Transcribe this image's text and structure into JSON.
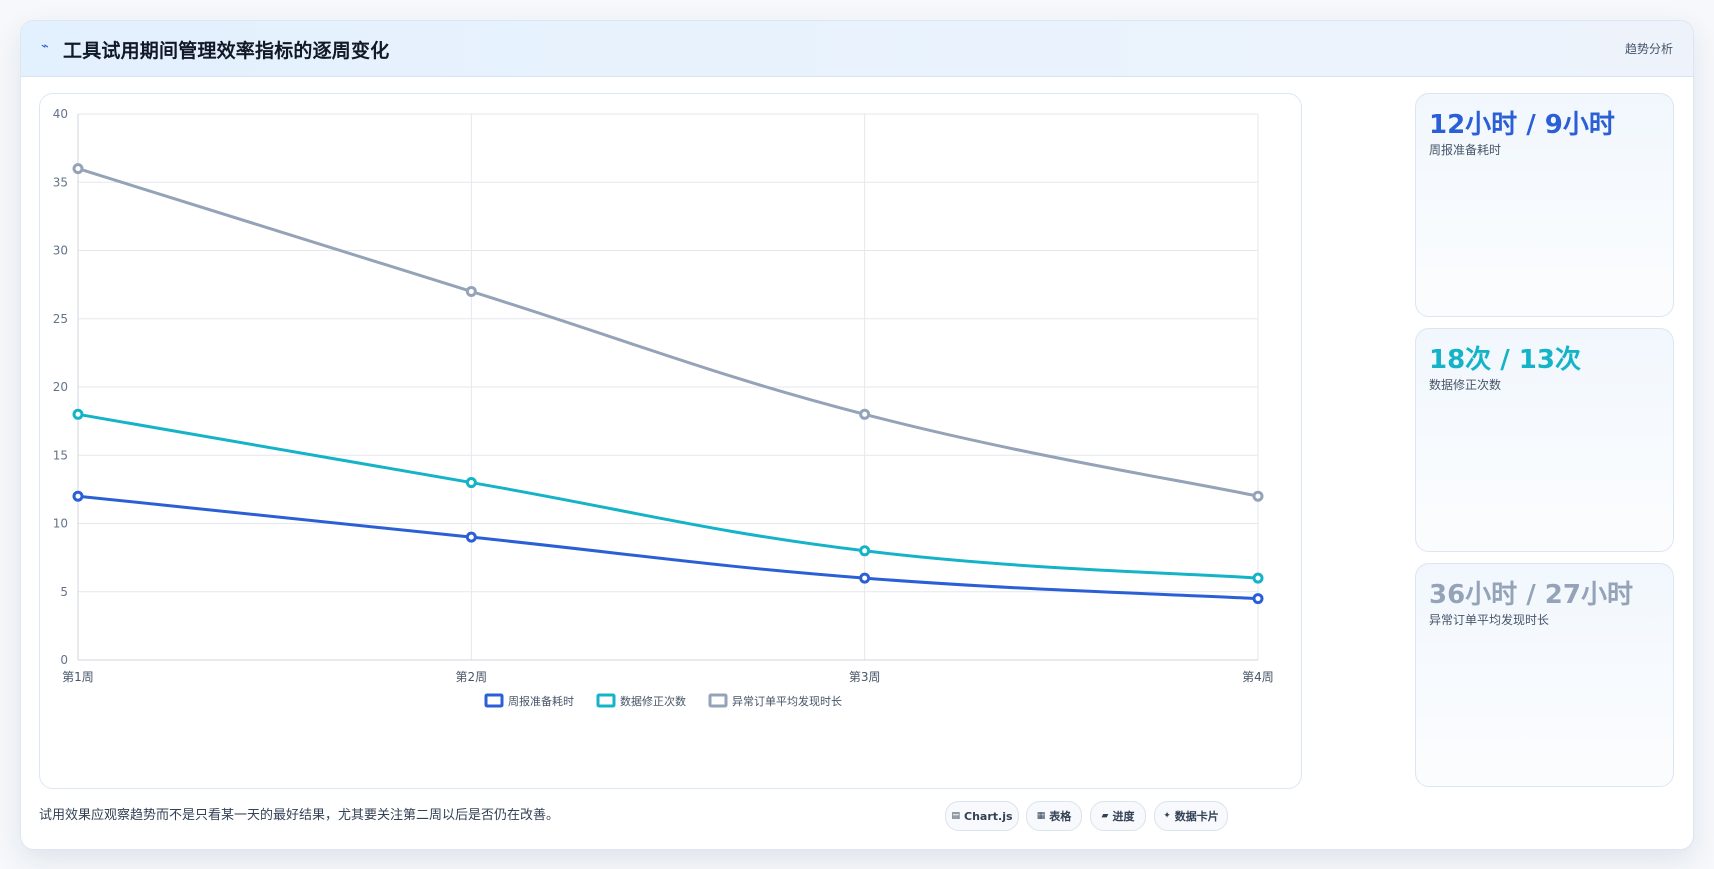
{
  "header": {
    "icon": "chart-icon",
    "title": "工具试用期间管理效率指标的逐周变化",
    "link_label": "趋势分析"
  },
  "chart_data": {
    "type": "line",
    "categories": [
      "第1周",
      "第2周",
      "第3周",
      "第4周"
    ],
    "series": [
      {
        "name": "周报准备耗时",
        "values": [
          12,
          9,
          6,
          4.5
        ],
        "color": "#2b5fd6"
      },
      {
        "name": "数据修正次数",
        "values": [
          18,
          13,
          8,
          6
        ],
        "color": "#14b3c8"
      },
      {
        "name": "异常订单平均发现时长",
        "values": [
          36,
          27,
          18,
          12
        ],
        "color": "#94a3b8"
      }
    ],
    "ylim": [
      0,
      40
    ],
    "yticks": [
      0,
      5,
      10,
      15,
      20,
      25,
      30,
      35,
      40
    ],
    "grid": true,
    "legend": "bottom"
  },
  "stats": [
    {
      "value": "12小时 / 9小时",
      "label": "周报准备耗时",
      "color": "#2b5fd6"
    },
    {
      "value": "18次 / 13次",
      "label": "数据修正次数",
      "color": "#14b3c8"
    },
    {
      "value": "36小时 / 27小时",
      "label": "异常订单平均发现时长",
      "color": "#94a3b8"
    }
  ],
  "footer": {
    "note": "试用效果应观察趋势而不是只看某一天的最好结果，尤其要关注第二周以后是否仍在改善。",
    "tags": [
      {
        "icon": "chart-icon",
        "label": "Chart.js"
      },
      {
        "icon": "table-icon",
        "label": "表格"
      },
      {
        "icon": "progress-icon",
        "label": "进度"
      },
      {
        "icon": "card-icon",
        "label": "数据卡片"
      }
    ]
  }
}
